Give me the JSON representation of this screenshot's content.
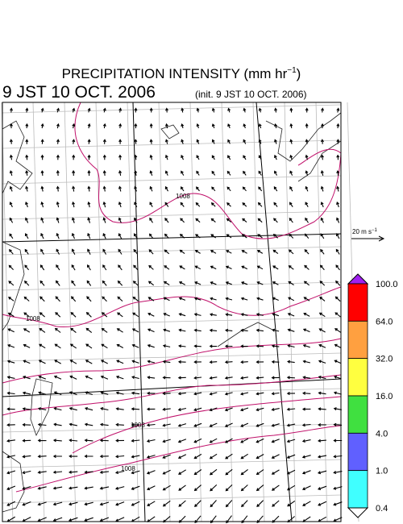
{
  "header": {
    "title_parts": [
      "PRECIPITATION INTENSITY (mm hr",
      "−1",
      ")"
    ],
    "valid_time": "9 JST 10 OCT. 2006",
    "init_time": "(init. 9 JST 10 OCT. 2006)"
  },
  "vector_key": {
    "parts": [
      "20 m s",
      "−1"
    ]
  },
  "colorbar": {
    "labels": [
      "100.0",
      "64.0",
      "32.0",
      "16.0",
      "4.0",
      "1.0",
      "0.4"
    ],
    "colors": [
      "#a020f0",
      "#ff0000",
      "#ffa040",
      "#ffff40",
      "#40e040",
      "#6060ff",
      "#40ffff",
      "#ffffff"
    ]
  },
  "contours": {
    "color": "#c0106a",
    "labels": [
      "1008",
      "1008",
      "1008",
      "1008"
    ]
  }
}
